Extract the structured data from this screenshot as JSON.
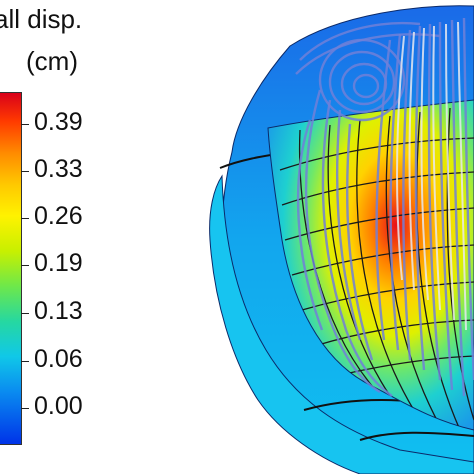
{
  "legend": {
    "title_line1": "all disp.",
    "title_line2": "(cm)",
    "ticks": [
      "0.39",
      "0.33",
      "0.26",
      "0.19",
      "0.13",
      "0.06",
      "0.00"
    ]
  },
  "colors": {
    "max": "#e0101a",
    "mid": "#ffe800",
    "min": "#0026e0",
    "wall_outer": "#1a73e8",
    "streamline": "#6f7fd6"
  }
}
